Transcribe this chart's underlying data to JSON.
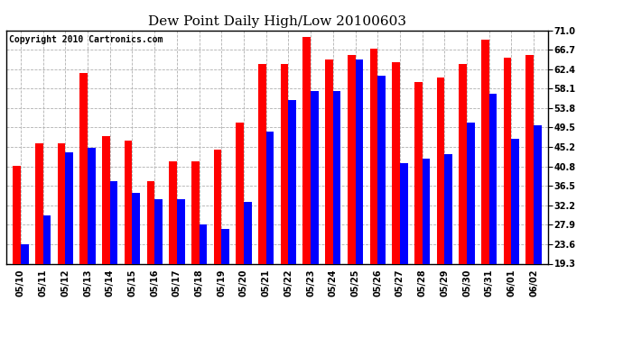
{
  "title": "Dew Point Daily High/Low 20100603",
  "copyright": "Copyright 2010 Cartronics.com",
  "dates": [
    "05/10",
    "05/11",
    "05/12",
    "05/13",
    "05/14",
    "05/15",
    "05/16",
    "05/17",
    "05/18",
    "05/19",
    "05/20",
    "05/21",
    "05/22",
    "05/23",
    "05/24",
    "05/25",
    "05/26",
    "05/27",
    "05/28",
    "05/29",
    "05/30",
    "05/31",
    "06/01",
    "06/02"
  ],
  "highs": [
    41.0,
    46.0,
    46.0,
    61.5,
    47.5,
    46.5,
    37.5,
    42.0,
    42.0,
    44.5,
    50.5,
    63.5,
    63.5,
    69.5,
    64.5,
    65.5,
    67.0,
    64.0,
    59.5,
    60.5,
    63.5,
    69.0,
    65.0,
    65.5
  ],
  "lows": [
    23.5,
    30.0,
    44.0,
    45.0,
    37.5,
    35.0,
    33.5,
    33.5,
    28.0,
    27.0,
    33.0,
    48.5,
    55.5,
    57.5,
    57.5,
    64.5,
    61.0,
    41.5,
    42.5,
    43.5,
    50.5,
    57.0,
    47.0,
    50.0
  ],
  "high_color": "#ff0000",
  "low_color": "#0000ff",
  "background_color": "#ffffff",
  "grid_color": "#b0b0b0",
  "ylim_min": 19.3,
  "ylim_max": 71.0,
  "yticks": [
    19.3,
    23.6,
    27.9,
    32.2,
    36.5,
    40.8,
    45.2,
    49.5,
    53.8,
    58.1,
    62.4,
    66.7,
    71.0
  ],
  "bar_width": 0.35,
  "title_fontsize": 11,
  "copyright_fontsize": 7,
  "tick_fontsize": 7,
  "figwidth": 6.9,
  "figheight": 3.75,
  "dpi": 100
}
